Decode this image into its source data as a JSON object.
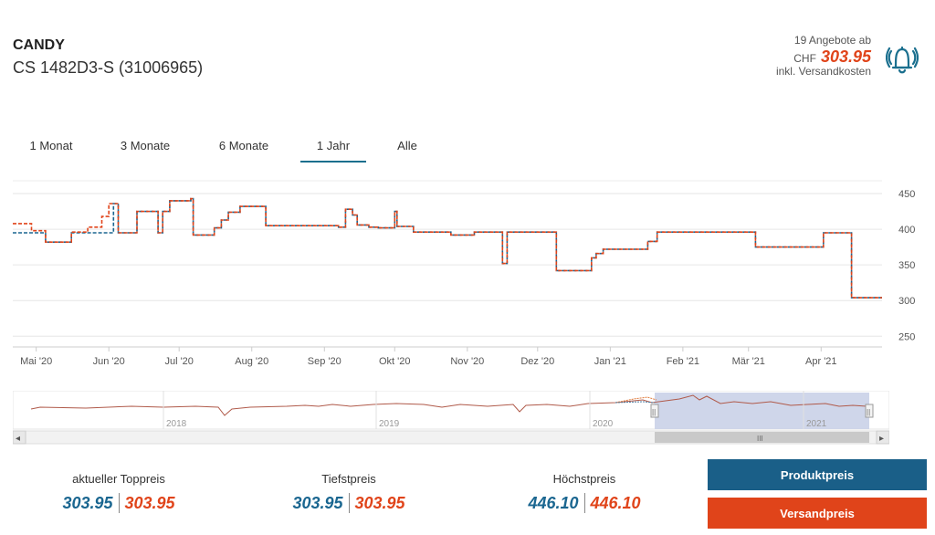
{
  "product": {
    "brand": "CANDY",
    "model": "CS 1482D3-S (31006965)"
  },
  "offer": {
    "count_label": "19 Angebote ab",
    "currency": "CHF",
    "price": "303.95",
    "shipping_note": "inkl. Versandkosten"
  },
  "tabs": [
    {
      "label": "1 Monat",
      "active": false
    },
    {
      "label": "3 Monate",
      "active": false
    },
    {
      "label": "6 Monate",
      "active": false
    },
    {
      "label": "1 Jahr",
      "active": true
    },
    {
      "label": "Alle",
      "active": false
    }
  ],
  "colors": {
    "product": "#1a6690",
    "shipping": "#e0441a"
  },
  "chart_data": {
    "type": "line",
    "title": "",
    "x_ticks": [
      "Mai '20",
      "Jun '20",
      "Jul '20",
      "Aug '20",
      "Sep '20",
      "Okt '20",
      "Nov '20",
      "Dez '20",
      "Jan '21",
      "Feb '21",
      "Mär '21",
      "Apr '21"
    ],
    "y_ticks": [
      450,
      400,
      350,
      300,
      250
    ],
    "ylim": [
      235,
      468
    ],
    "x_domain": [
      "2020-04-21",
      "2021-04-27"
    ],
    "grid": true,
    "series": [
      {
        "key": "product",
        "color": "#1a6690",
        "points": [
          [
            "2020-04-21",
            395
          ],
          [
            "2020-05-05",
            395
          ],
          [
            "2020-05-05",
            382
          ],
          [
            "2020-05-16",
            382
          ],
          [
            "2020-05-16",
            395
          ],
          [
            "2020-06-03",
            395
          ],
          [
            "2020-06-03",
            436
          ],
          [
            "2020-06-05",
            436
          ],
          [
            "2020-06-05",
            395
          ],
          [
            "2020-06-13",
            395
          ],
          [
            "2020-06-13",
            425
          ],
          [
            "2020-06-22",
            425
          ],
          [
            "2020-06-22",
            395
          ],
          [
            "2020-06-24",
            395
          ],
          [
            "2020-06-24",
            425
          ],
          [
            "2020-06-27",
            425
          ],
          [
            "2020-06-27",
            440
          ],
          [
            "2020-07-06",
            440
          ],
          [
            "2020-07-06",
            443
          ],
          [
            "2020-07-07",
            443
          ],
          [
            "2020-07-07",
            392
          ],
          [
            "2020-07-16",
            392
          ],
          [
            "2020-07-16",
            402
          ],
          [
            "2020-07-19",
            402
          ],
          [
            "2020-07-19",
            413
          ],
          [
            "2020-07-22",
            413
          ],
          [
            "2020-07-22",
            424
          ],
          [
            "2020-07-27",
            424
          ],
          [
            "2020-07-27",
            432
          ],
          [
            "2020-08-07",
            432
          ],
          [
            "2020-08-07",
            405
          ],
          [
            "2020-09-07",
            405
          ],
          [
            "2020-09-07",
            403
          ],
          [
            "2020-09-10",
            403
          ],
          [
            "2020-09-10",
            428
          ],
          [
            "2020-09-13",
            428
          ],
          [
            "2020-09-13",
            420
          ],
          [
            "2020-09-15",
            420
          ],
          [
            "2020-09-15",
            406
          ],
          [
            "2020-09-20",
            406
          ],
          [
            "2020-09-20",
            403
          ],
          [
            "2020-09-24",
            403
          ],
          [
            "2020-09-24",
            402
          ],
          [
            "2020-10-01",
            402
          ],
          [
            "2020-10-01",
            425
          ],
          [
            "2020-10-02",
            425
          ],
          [
            "2020-10-02",
            404
          ],
          [
            "2020-10-09",
            404
          ],
          [
            "2020-10-09",
            396
          ],
          [
            "2020-10-25",
            396
          ],
          [
            "2020-10-25",
            392
          ],
          [
            "2020-11-04",
            392
          ],
          [
            "2020-11-04",
            396
          ],
          [
            "2020-11-16",
            396
          ],
          [
            "2020-11-16",
            352
          ],
          [
            "2020-11-18",
            352
          ],
          [
            "2020-11-18",
            396
          ],
          [
            "2020-11-23",
            396
          ],
          [
            "2020-11-23",
            396
          ],
          [
            "2020-12-09",
            396
          ],
          [
            "2020-12-09",
            342
          ],
          [
            "2020-12-24",
            342
          ],
          [
            "2020-12-24",
            360
          ],
          [
            "2020-12-26",
            360
          ],
          [
            "2020-12-26",
            366
          ],
          [
            "2020-12-29",
            366
          ],
          [
            "2020-12-29",
            372
          ],
          [
            "2021-01-17",
            372
          ],
          [
            "2021-01-17",
            383
          ],
          [
            "2021-01-21",
            383
          ],
          [
            "2021-01-21",
            396
          ],
          [
            "2021-03-04",
            396
          ],
          [
            "2021-03-04",
            375
          ],
          [
            "2021-04-02",
            375
          ],
          [
            "2021-04-02",
            395
          ],
          [
            "2021-04-14",
            395
          ],
          [
            "2021-04-14",
            304
          ],
          [
            "2021-04-27",
            304
          ]
        ]
      },
      {
        "key": "shipping",
        "color": "#e0441a",
        "points": [
          [
            "2020-04-21",
            408
          ],
          [
            "2020-04-29",
            408
          ],
          [
            "2020-04-29",
            398
          ],
          [
            "2020-05-05",
            398
          ],
          [
            "2020-05-05",
            382
          ],
          [
            "2020-05-16",
            382
          ],
          [
            "2020-05-16",
            396
          ],
          [
            "2020-05-23",
            396
          ],
          [
            "2020-05-23",
            403
          ],
          [
            "2020-05-29",
            403
          ],
          [
            "2020-05-29",
            418
          ],
          [
            "2020-06-01",
            418
          ],
          [
            "2020-06-01",
            436
          ],
          [
            "2020-06-05",
            436
          ],
          [
            "2020-06-05",
            395
          ],
          [
            "2020-06-13",
            395
          ],
          [
            "2020-06-13",
            425
          ],
          [
            "2020-06-22",
            425
          ],
          [
            "2020-06-22",
            395
          ],
          [
            "2020-06-24",
            395
          ],
          [
            "2020-06-24",
            425
          ],
          [
            "2020-06-27",
            425
          ],
          [
            "2020-06-27",
            440
          ],
          [
            "2020-07-06",
            440
          ],
          [
            "2020-07-06",
            443
          ],
          [
            "2020-07-07",
            443
          ],
          [
            "2020-07-07",
            392
          ],
          [
            "2020-07-16",
            392
          ],
          [
            "2020-07-16",
            402
          ],
          [
            "2020-07-19",
            402
          ],
          [
            "2020-07-19",
            413
          ],
          [
            "2020-07-22",
            413
          ],
          [
            "2020-07-22",
            424
          ],
          [
            "2020-07-27",
            424
          ],
          [
            "2020-07-27",
            432
          ],
          [
            "2020-08-07",
            432
          ],
          [
            "2020-08-07",
            405
          ],
          [
            "2020-09-07",
            405
          ],
          [
            "2020-09-07",
            403
          ],
          [
            "2020-09-10",
            403
          ],
          [
            "2020-09-10",
            428
          ],
          [
            "2020-09-13",
            428
          ],
          [
            "2020-09-13",
            420
          ],
          [
            "2020-09-15",
            420
          ],
          [
            "2020-09-15",
            406
          ],
          [
            "2020-09-20",
            406
          ],
          [
            "2020-09-20",
            403
          ],
          [
            "2020-09-24",
            403
          ],
          [
            "2020-09-24",
            402
          ],
          [
            "2020-10-01",
            402
          ],
          [
            "2020-10-01",
            425
          ],
          [
            "2020-10-02",
            425
          ],
          [
            "2020-10-02",
            404
          ],
          [
            "2020-10-09",
            404
          ],
          [
            "2020-10-09",
            396
          ],
          [
            "2020-10-25",
            396
          ],
          [
            "2020-10-25",
            392
          ],
          [
            "2020-11-04",
            392
          ],
          [
            "2020-11-04",
            396
          ],
          [
            "2020-11-16",
            396
          ],
          [
            "2020-11-16",
            352
          ],
          [
            "2020-11-18",
            352
          ],
          [
            "2020-11-18",
            396
          ],
          [
            "2020-12-09",
            396
          ],
          [
            "2020-12-09",
            342
          ],
          [
            "2020-12-24",
            342
          ],
          [
            "2020-12-24",
            360
          ],
          [
            "2020-12-26",
            360
          ],
          [
            "2020-12-26",
            366
          ],
          [
            "2020-12-29",
            366
          ],
          [
            "2020-12-29",
            372
          ],
          [
            "2021-01-17",
            372
          ],
          [
            "2021-01-17",
            383
          ],
          [
            "2021-01-21",
            383
          ],
          [
            "2021-01-21",
            396
          ],
          [
            "2021-03-04",
            396
          ],
          [
            "2021-03-04",
            375
          ],
          [
            "2021-04-02",
            375
          ],
          [
            "2021-04-02",
            395
          ],
          [
            "2021-04-14",
            395
          ],
          [
            "2021-04-14",
            304
          ],
          [
            "2021-04-27",
            304
          ]
        ]
      }
    ]
  },
  "navigator": {
    "year_labels": [
      "2018",
      "2019",
      "2020",
      "2021"
    ],
    "scroll_left": "◂",
    "scroll_right": "▸",
    "scroll_grip": "III",
    "handle_grip": "||"
  },
  "summary": [
    {
      "label": "aktueller Toppreis",
      "product": "303.95",
      "shipping": "303.95"
    },
    {
      "label": "Tiefstpreis",
      "product": "303.95",
      "shipping": "303.95"
    },
    {
      "label": "Höchstpreis",
      "product": "446.10",
      "shipping": "446.10"
    }
  ],
  "buttons": {
    "product": "Produktpreis",
    "shipping": "Versandpreis"
  }
}
